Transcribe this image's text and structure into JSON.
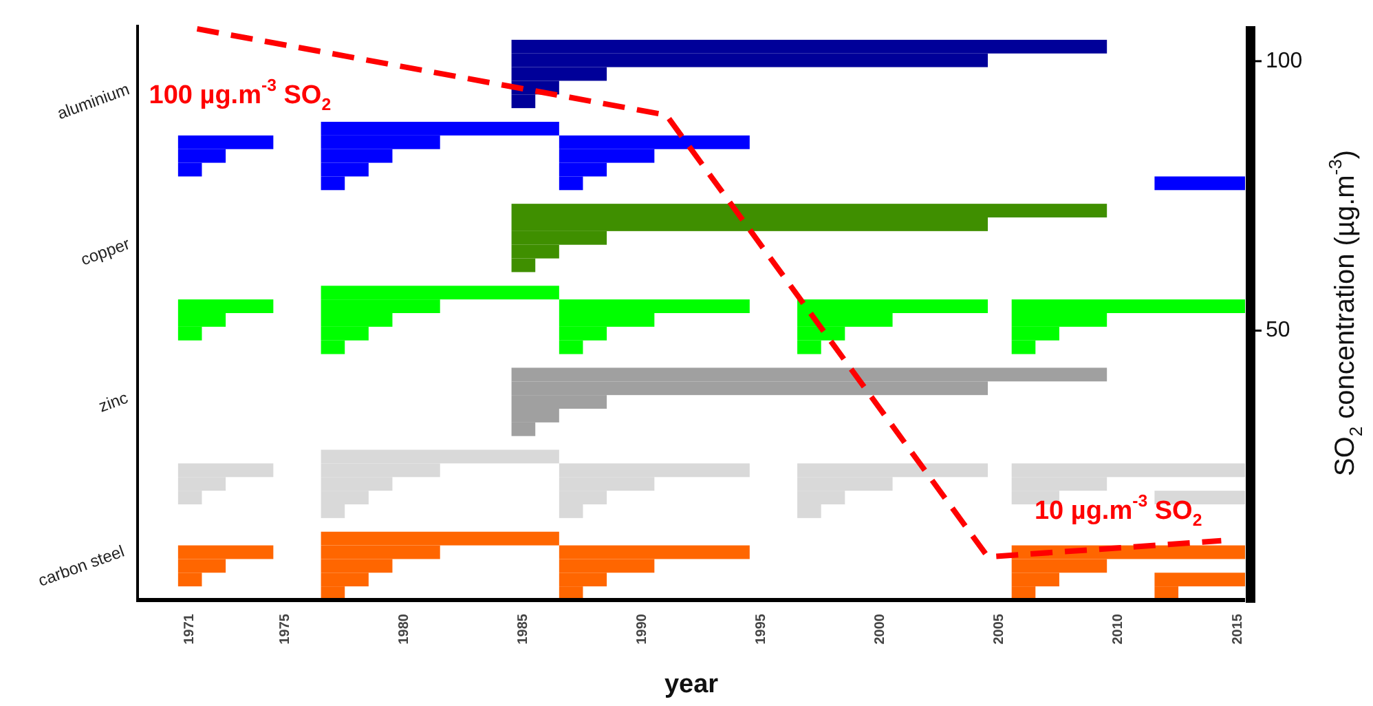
{
  "chart_data": [
    {
      "type": "bar",
      "orientation": "horizontal",
      "xlabel": "year",
      "categories": [
        null,
        null,
        null,
        null,
        null,
        "aluminium",
        null,
        null,
        null,
        null,
        null,
        null,
        null,
        null,
        null,
        null,
        "copper",
        null,
        null,
        null,
        null,
        null,
        null,
        null,
        null,
        null,
        null,
        "zinc",
        null,
        null,
        null,
        null,
        null,
        null,
        null,
        null,
        null,
        null,
        null,
        "carbon steel",
        null,
        null
      ],
      "xlim": [
        1968.8,
        2015.3
      ],
      "xticks": [
        1971,
        1975,
        1980,
        1985,
        1990,
        1995,
        2000,
        2005,
        2010,
        2015
      ],
      "series": [
        {
          "color": "#000099",
          "values": [
            null,
            25,
            20,
            4,
            2,
            1,
            null,
            null,
            null,
            null,
            null,
            null,
            null,
            null,
            null,
            null,
            null,
            null,
            null,
            null,
            null,
            null,
            null,
            null,
            null,
            null,
            null,
            null,
            null,
            null,
            null,
            null,
            null,
            null,
            null,
            null,
            null,
            null,
            null,
            null,
            null,
            null
          ],
          "base": [
            null,
            1984.5,
            1984.5,
            1984.5,
            1984.5,
            1984.5,
            null,
            null,
            null,
            null,
            null,
            null,
            null,
            null,
            null,
            null,
            null,
            null,
            null,
            null,
            null,
            null,
            null,
            null,
            null,
            null,
            null,
            null,
            null,
            null,
            null,
            null,
            null,
            null,
            null,
            null,
            null,
            null,
            null,
            null,
            null,
            null
          ]
        },
        {
          "color": "#0000ff",
          "values": [
            null,
            null,
            null,
            null,
            null,
            null,
            null,
            null,
            4,
            2,
            1,
            null,
            null,
            null,
            null,
            null,
            null,
            null,
            null,
            null,
            null,
            null,
            null,
            null,
            null,
            null,
            null,
            null,
            null,
            null,
            null,
            null,
            null,
            null,
            null,
            null,
            null,
            null,
            null,
            null,
            null,
            null
          ],
          "base": [
            null,
            null,
            null,
            null,
            null,
            null,
            null,
            null,
            1970.5,
            1970.5,
            1970.5,
            null,
            null,
            null,
            null,
            null,
            null,
            null,
            null,
            null,
            null,
            null,
            null,
            null,
            null,
            null,
            null,
            null,
            null,
            null,
            null,
            null,
            null,
            null,
            null,
            null,
            null,
            null,
            null,
            null,
            null,
            null
          ]
        },
        {
          "color": "#0000ff",
          "values": [
            null,
            null,
            null,
            null,
            null,
            null,
            null,
            10,
            5,
            3,
            2,
            1,
            null,
            null,
            null,
            null,
            null,
            null,
            null,
            null,
            null,
            null,
            null,
            null,
            null,
            null,
            null,
            null,
            null,
            null,
            null,
            null,
            null,
            null,
            null,
            null,
            null,
            null,
            null,
            null,
            null,
            null
          ],
          "base": [
            null,
            null,
            null,
            null,
            null,
            null,
            null,
            1976.5,
            1976.5,
            1976.5,
            1976.5,
            1976.5,
            null,
            null,
            null,
            null,
            null,
            null,
            null,
            null,
            null,
            null,
            null,
            null,
            null,
            null,
            null,
            null,
            null,
            null,
            null,
            null,
            null,
            null,
            null,
            null,
            null,
            null,
            null,
            null,
            null,
            null
          ]
        },
        {
          "color": "#0000ff",
          "values": [
            null,
            null,
            null,
            null,
            null,
            null,
            null,
            null,
            8,
            4,
            2,
            1,
            null,
            null,
            null,
            null,
            null,
            null,
            null,
            null,
            null,
            null,
            null,
            null,
            null,
            null,
            null,
            null,
            null,
            null,
            null,
            null,
            null,
            null,
            null,
            null,
            null,
            null,
            null,
            null,
            null,
            null
          ],
          "base": [
            null,
            null,
            null,
            null,
            null,
            null,
            null,
            null,
            1986.5,
            1986.5,
            1986.5,
            1986.5,
            null,
            null,
            null,
            null,
            null,
            null,
            null,
            null,
            null,
            null,
            null,
            null,
            null,
            null,
            null,
            null,
            null,
            null,
            null,
            null,
            null,
            null,
            null,
            null,
            null,
            null,
            null,
            null,
            null,
            null
          ]
        },
        {
          "color": "#0000ff",
          "values": [
            null,
            null,
            null,
            null,
            null,
            null,
            null,
            null,
            null,
            null,
            null,
            3.8,
            null,
            null,
            null,
            null,
            null,
            null,
            null,
            null,
            null,
            null,
            null,
            null,
            null,
            null,
            null,
            null,
            null,
            null,
            null,
            null,
            null,
            null,
            null,
            null,
            null,
            null,
            null,
            null,
            null,
            null
          ],
          "base": [
            null,
            null,
            null,
            null,
            null,
            null,
            null,
            null,
            null,
            null,
            null,
            2011.5,
            null,
            null,
            null,
            null,
            null,
            null,
            null,
            null,
            null,
            null,
            null,
            null,
            null,
            null,
            null,
            null,
            null,
            null,
            null,
            null,
            null,
            null,
            null,
            null,
            null,
            null,
            null,
            null,
            null,
            null
          ]
        },
        {
          "color": "#3f8f00",
          "values": [
            null,
            null,
            null,
            null,
            null,
            null,
            null,
            null,
            null,
            null,
            null,
            null,
            null,
            25,
            20,
            4,
            2,
            1,
            null,
            null,
            null,
            null,
            null,
            null,
            null,
            null,
            null,
            null,
            null,
            null,
            null,
            null,
            null,
            null,
            null,
            null,
            null,
            null,
            null,
            null,
            null,
            null
          ],
          "base": [
            null,
            null,
            null,
            null,
            null,
            null,
            null,
            null,
            null,
            null,
            null,
            null,
            null,
            1984.5,
            1984.5,
            1984.5,
            1984.5,
            1984.5,
            null,
            null,
            null,
            null,
            null,
            null,
            null,
            null,
            null,
            null,
            null,
            null,
            null,
            null,
            null,
            null,
            null,
            null,
            null,
            null,
            null,
            null,
            null,
            null
          ]
        },
        {
          "color": "#00ff00",
          "values": [
            null,
            null,
            null,
            null,
            null,
            null,
            null,
            null,
            null,
            null,
            null,
            null,
            null,
            null,
            null,
            null,
            null,
            null,
            null,
            null,
            4,
            2,
            1,
            null,
            null,
            null,
            null,
            null,
            null,
            null,
            null,
            null,
            null,
            null,
            null,
            null,
            null,
            null,
            null,
            null,
            null,
            null
          ],
          "base": [
            null,
            null,
            null,
            null,
            null,
            null,
            null,
            null,
            null,
            null,
            null,
            null,
            null,
            null,
            null,
            null,
            null,
            null,
            null,
            null,
            1970.5,
            1970.5,
            1970.5,
            null,
            null,
            null,
            null,
            null,
            null,
            null,
            null,
            null,
            null,
            null,
            null,
            null,
            null,
            null,
            null,
            null,
            null,
            null
          ]
        },
        {
          "color": "#00ff00",
          "values": [
            null,
            null,
            null,
            null,
            null,
            null,
            null,
            null,
            null,
            null,
            null,
            null,
            null,
            null,
            null,
            null,
            null,
            null,
            null,
            10,
            5,
            3,
            2,
            1,
            null,
            null,
            null,
            null,
            null,
            null,
            null,
            null,
            null,
            null,
            null,
            null,
            null,
            null,
            null,
            null,
            null,
            null
          ],
          "base": [
            null,
            null,
            null,
            null,
            null,
            null,
            null,
            null,
            null,
            null,
            null,
            null,
            null,
            null,
            null,
            null,
            null,
            null,
            null,
            1976.5,
            1976.5,
            1976.5,
            1976.5,
            1976.5,
            null,
            null,
            null,
            null,
            null,
            null,
            null,
            null,
            null,
            null,
            null,
            null,
            null,
            null,
            null,
            null,
            null,
            null
          ]
        },
        {
          "color": "#00ff00",
          "values": [
            null,
            null,
            null,
            null,
            null,
            null,
            null,
            null,
            null,
            null,
            null,
            null,
            null,
            null,
            null,
            null,
            null,
            null,
            null,
            null,
            8,
            4,
            2,
            1,
            null,
            null,
            null,
            null,
            null,
            null,
            null,
            null,
            null,
            null,
            null,
            null,
            null,
            null,
            null,
            null,
            null,
            null
          ],
          "base": [
            null,
            null,
            null,
            null,
            null,
            null,
            null,
            null,
            null,
            null,
            null,
            null,
            null,
            null,
            null,
            null,
            null,
            null,
            null,
            null,
            1986.5,
            1986.5,
            1986.5,
            1986.5,
            null,
            null,
            null,
            null,
            null,
            null,
            null,
            null,
            null,
            null,
            null,
            null,
            null,
            null,
            null,
            null,
            null,
            null
          ]
        },
        {
          "color": "#00ff00",
          "values": [
            null,
            null,
            null,
            null,
            null,
            null,
            null,
            null,
            null,
            null,
            null,
            null,
            null,
            null,
            null,
            null,
            null,
            null,
            null,
            null,
            8,
            4,
            2,
            1,
            null,
            null,
            null,
            null,
            null,
            null,
            null,
            null,
            null,
            null,
            null,
            null,
            null,
            null,
            null,
            null,
            null,
            null
          ],
          "base": [
            null,
            null,
            null,
            null,
            null,
            null,
            null,
            null,
            null,
            null,
            null,
            null,
            null,
            null,
            null,
            null,
            null,
            null,
            null,
            null,
            1996.5,
            1996.5,
            1996.5,
            1996.5,
            null,
            null,
            null,
            null,
            null,
            null,
            null,
            null,
            null,
            null,
            null,
            null,
            null,
            null,
            null,
            null,
            null,
            null
          ]
        },
        {
          "color": "#00ff00",
          "values": [
            null,
            null,
            null,
            null,
            null,
            null,
            null,
            null,
            null,
            null,
            null,
            null,
            null,
            null,
            null,
            null,
            null,
            null,
            null,
            null,
            9.8,
            4,
            2,
            1,
            null,
            null,
            null,
            null,
            null,
            null,
            null,
            null,
            null,
            null,
            null,
            null,
            null,
            null,
            null,
            null,
            null,
            null
          ],
          "base": [
            null,
            null,
            null,
            null,
            null,
            null,
            null,
            null,
            null,
            null,
            null,
            null,
            null,
            null,
            null,
            null,
            null,
            null,
            null,
            null,
            2005.5,
            2005.5,
            2005.5,
            2005.5,
            null,
            null,
            null,
            null,
            null,
            null,
            null,
            null,
            null,
            null,
            null,
            null,
            null,
            null,
            null,
            null,
            null,
            null
          ]
        },
        {
          "color": "#a0a0a0",
          "values": [
            null,
            null,
            null,
            null,
            null,
            null,
            null,
            null,
            null,
            null,
            null,
            null,
            null,
            null,
            null,
            null,
            null,
            null,
            null,
            null,
            null,
            null,
            null,
            null,
            null,
            25,
            20,
            4,
            2,
            1,
            null,
            null,
            null,
            null,
            null,
            null,
            null,
            null,
            null,
            null,
            null,
            null
          ],
          "base": [
            null,
            null,
            null,
            null,
            null,
            null,
            null,
            null,
            null,
            null,
            null,
            null,
            null,
            null,
            null,
            null,
            null,
            null,
            null,
            null,
            null,
            null,
            null,
            null,
            null,
            1984.5,
            1984.5,
            1984.5,
            1984.5,
            1984.5,
            null,
            null,
            null,
            null,
            null,
            null,
            null,
            null,
            null,
            null,
            null,
            null
          ]
        },
        {
          "color": "#d9d9d9",
          "values": [
            null,
            null,
            null,
            null,
            null,
            null,
            null,
            null,
            null,
            null,
            null,
            null,
            null,
            null,
            null,
            null,
            null,
            null,
            null,
            null,
            null,
            null,
            null,
            null,
            null,
            null,
            null,
            null,
            null,
            null,
            null,
            null,
            4,
            2,
            1,
            null,
            null,
            null,
            null,
            null,
            null,
            null
          ],
          "base": [
            null,
            null,
            null,
            null,
            null,
            null,
            null,
            null,
            null,
            null,
            null,
            null,
            null,
            null,
            null,
            null,
            null,
            null,
            null,
            null,
            null,
            null,
            null,
            null,
            null,
            null,
            null,
            null,
            null,
            null,
            null,
            null,
            1970.5,
            1970.5,
            1970.5,
            null,
            null,
            null,
            null,
            null,
            null,
            null
          ]
        },
        {
          "color": "#d9d9d9",
          "values": [
            null,
            null,
            null,
            null,
            null,
            null,
            null,
            null,
            null,
            null,
            null,
            null,
            null,
            null,
            null,
            null,
            null,
            null,
            null,
            null,
            null,
            null,
            null,
            null,
            null,
            null,
            null,
            null,
            null,
            null,
            null,
            10,
            5,
            3,
            2,
            1,
            null,
            null,
            null,
            null,
            null,
            null
          ],
          "base": [
            null,
            null,
            null,
            null,
            null,
            null,
            null,
            null,
            null,
            null,
            null,
            null,
            null,
            null,
            null,
            null,
            null,
            null,
            null,
            null,
            null,
            null,
            null,
            null,
            null,
            null,
            null,
            null,
            null,
            null,
            null,
            1976.5,
            1976.5,
            1976.5,
            1976.5,
            1976.5,
            null,
            null,
            null,
            null,
            null,
            null
          ]
        },
        {
          "color": "#d9d9d9",
          "values": [
            null,
            null,
            null,
            null,
            null,
            null,
            null,
            null,
            null,
            null,
            null,
            null,
            null,
            null,
            null,
            null,
            null,
            null,
            null,
            null,
            null,
            null,
            null,
            null,
            null,
            null,
            null,
            null,
            null,
            null,
            null,
            null,
            8,
            4,
            2,
            1,
            null,
            null,
            null,
            null,
            null,
            null
          ],
          "base": [
            null,
            null,
            null,
            null,
            null,
            null,
            null,
            null,
            null,
            null,
            null,
            null,
            null,
            null,
            null,
            null,
            null,
            null,
            null,
            null,
            null,
            null,
            null,
            null,
            null,
            null,
            null,
            null,
            null,
            null,
            null,
            null,
            1986.5,
            1986.5,
            1986.5,
            1986.5,
            null,
            null,
            null,
            null,
            null,
            null
          ]
        },
        {
          "color": "#d9d9d9",
          "values": [
            null,
            null,
            null,
            null,
            null,
            null,
            null,
            null,
            null,
            null,
            null,
            null,
            null,
            null,
            null,
            null,
            null,
            null,
            null,
            null,
            null,
            null,
            null,
            null,
            null,
            null,
            null,
            null,
            null,
            null,
            null,
            null,
            8,
            4,
            2,
            1,
            null,
            null,
            null,
            null,
            null,
            null
          ],
          "base": [
            null,
            null,
            null,
            null,
            null,
            null,
            null,
            null,
            null,
            null,
            null,
            null,
            null,
            null,
            null,
            null,
            null,
            null,
            null,
            null,
            null,
            null,
            null,
            null,
            null,
            null,
            null,
            null,
            null,
            null,
            null,
            null,
            1996.5,
            1996.5,
            1996.5,
            1996.5,
            null,
            null,
            null,
            null,
            null,
            null
          ]
        },
        {
          "color": "#d9d9d9",
          "values": [
            null,
            null,
            null,
            null,
            null,
            null,
            null,
            null,
            null,
            null,
            null,
            null,
            null,
            null,
            null,
            null,
            null,
            null,
            null,
            null,
            null,
            null,
            null,
            null,
            null,
            null,
            null,
            null,
            null,
            null,
            null,
            null,
            9.8,
            4,
            2,
            null,
            null,
            null,
            null,
            null,
            null,
            null
          ],
          "base": [
            null,
            null,
            null,
            null,
            null,
            null,
            null,
            null,
            null,
            null,
            null,
            null,
            null,
            null,
            null,
            null,
            null,
            null,
            null,
            null,
            null,
            null,
            null,
            null,
            null,
            null,
            null,
            null,
            null,
            null,
            null,
            null,
            2005.5,
            2005.5,
            2005.5,
            null,
            null,
            null,
            null,
            null,
            null,
            null
          ]
        },
        {
          "color": "#d9d9d9",
          "values": [
            null,
            null,
            null,
            null,
            null,
            null,
            null,
            null,
            null,
            null,
            null,
            null,
            null,
            null,
            null,
            null,
            null,
            null,
            null,
            null,
            null,
            null,
            null,
            null,
            null,
            null,
            null,
            null,
            null,
            null,
            null,
            null,
            null,
            null,
            3.8,
            null,
            null,
            null,
            null,
            null,
            null,
            null
          ],
          "base": [
            null,
            null,
            null,
            null,
            null,
            null,
            null,
            null,
            null,
            null,
            null,
            null,
            null,
            null,
            null,
            null,
            null,
            null,
            null,
            null,
            null,
            null,
            null,
            null,
            null,
            null,
            null,
            null,
            null,
            null,
            null,
            null,
            null,
            null,
            2011.5,
            null,
            null,
            null,
            null,
            null,
            null,
            null
          ]
        },
        {
          "color": "#ff6600",
          "values": [
            null,
            null,
            null,
            null,
            null,
            null,
            null,
            null,
            null,
            null,
            null,
            null,
            null,
            null,
            null,
            null,
            null,
            null,
            null,
            null,
            null,
            null,
            null,
            null,
            null,
            null,
            null,
            null,
            null,
            null,
            null,
            null,
            null,
            null,
            null,
            null,
            null,
            null,
            4,
            2,
            1,
            null
          ],
          "base": [
            null,
            null,
            null,
            null,
            null,
            null,
            null,
            null,
            null,
            null,
            null,
            null,
            null,
            null,
            null,
            null,
            null,
            null,
            null,
            null,
            null,
            null,
            null,
            null,
            null,
            null,
            null,
            null,
            null,
            null,
            null,
            null,
            null,
            null,
            null,
            null,
            null,
            null,
            1970.5,
            1970.5,
            1970.5,
            null
          ]
        },
        {
          "color": "#ff6600",
          "values": [
            null,
            null,
            null,
            null,
            null,
            null,
            null,
            null,
            null,
            null,
            null,
            null,
            null,
            null,
            null,
            null,
            null,
            null,
            null,
            null,
            null,
            null,
            null,
            null,
            null,
            null,
            null,
            null,
            null,
            null,
            null,
            null,
            null,
            null,
            null,
            null,
            null,
            10,
            5,
            3,
            2,
            1
          ],
          "base": [
            null,
            null,
            null,
            null,
            null,
            null,
            null,
            null,
            null,
            null,
            null,
            null,
            null,
            null,
            null,
            null,
            null,
            null,
            null,
            null,
            null,
            null,
            null,
            null,
            null,
            null,
            null,
            null,
            null,
            null,
            null,
            null,
            null,
            null,
            null,
            null,
            null,
            1976.5,
            1976.5,
            1976.5,
            1976.5,
            1976.5
          ]
        },
        {
          "color": "#ff6600",
          "values": [
            null,
            null,
            null,
            null,
            null,
            null,
            null,
            null,
            null,
            null,
            null,
            null,
            null,
            null,
            null,
            null,
            null,
            null,
            null,
            null,
            null,
            null,
            null,
            null,
            null,
            null,
            null,
            null,
            null,
            null,
            null,
            null,
            null,
            null,
            null,
            null,
            null,
            null,
            8,
            4,
            2,
            1
          ],
          "base": [
            null,
            null,
            null,
            null,
            null,
            null,
            null,
            null,
            null,
            null,
            null,
            null,
            null,
            null,
            null,
            null,
            null,
            null,
            null,
            null,
            null,
            null,
            null,
            null,
            null,
            null,
            null,
            null,
            null,
            null,
            null,
            null,
            null,
            null,
            null,
            null,
            null,
            null,
            1986.5,
            1986.5,
            1986.5,
            1986.5
          ]
        },
        {
          "color": "#ff6600",
          "values": [
            null,
            null,
            null,
            null,
            null,
            null,
            null,
            null,
            null,
            null,
            null,
            null,
            null,
            null,
            null,
            null,
            null,
            null,
            null,
            null,
            null,
            null,
            null,
            null,
            null,
            null,
            null,
            null,
            null,
            null,
            null,
            null,
            null,
            null,
            null,
            null,
            null,
            null,
            9.8,
            4,
            2,
            1
          ],
          "base": [
            null,
            null,
            null,
            null,
            null,
            null,
            null,
            null,
            null,
            null,
            null,
            null,
            null,
            null,
            null,
            null,
            null,
            null,
            null,
            null,
            null,
            null,
            null,
            null,
            null,
            null,
            null,
            null,
            null,
            null,
            null,
            null,
            null,
            null,
            null,
            null,
            null,
            null,
            2005.5,
            2005.5,
            2005.5,
            2005.5
          ]
        },
        {
          "color": "#ff6600",
          "values": [
            null,
            null,
            null,
            null,
            null,
            null,
            null,
            null,
            null,
            null,
            null,
            null,
            null,
            null,
            null,
            null,
            null,
            null,
            null,
            null,
            null,
            null,
            null,
            null,
            null,
            null,
            null,
            null,
            null,
            null,
            null,
            null,
            null,
            null,
            null,
            null,
            null,
            null,
            null,
            null,
            3.8,
            1
          ],
          "base": [
            null,
            null,
            null,
            null,
            null,
            null,
            null,
            null,
            null,
            null,
            null,
            null,
            null,
            null,
            null,
            null,
            null,
            null,
            null,
            null,
            null,
            null,
            null,
            null,
            null,
            null,
            null,
            null,
            null,
            null,
            null,
            null,
            null,
            null,
            null,
            null,
            null,
            null,
            null,
            null,
            2011.5,
            2011.5
          ]
        }
      ]
    },
    {
      "type": "line",
      "ylabel": "SO$_{2}$ concentration (µg.m$^{-3}$)",
      "xlim": [
        1968.8,
        2015.3
      ],
      "ylim": [
        0,
        106.5
      ],
      "yticks": [
        50,
        100
      ],
      "tick_labels": "y",
      "x": [
        1971.3,
        1991,
        2004.5,
        2014.3
      ],
      "annotations": [
        "100 µg.m$^{-3}$ SO$_{2}$",
        "10 µg.m$^{-3}$ SO$_{2}$"
      ],
      "series": [
        {
          "color": "#ff0000",
          "line_style": "dashed",
          "values": [
            106,
            90,
            8,
            11
          ]
        }
      ]
    }
  ]
}
